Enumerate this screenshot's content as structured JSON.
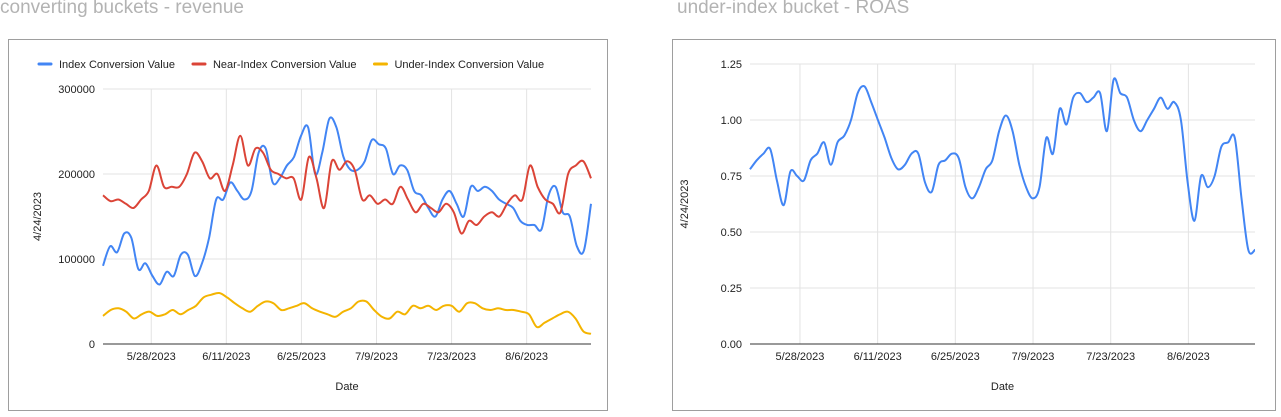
{
  "charts": {
    "left": {
      "title": "converting buckets - revenue"
    },
    "right": {
      "title": "under-index bucket - ROAS"
    }
  },
  "chart_data": [
    {
      "type": "line",
      "title": "converting buckets - revenue",
      "xlabel": "Date",
      "ylabel": "4/24/2023",
      "x_ticks": [
        "5/28/2023",
        "6/11/2023",
        "6/25/2023",
        "7/9/2023",
        "7/23/2023",
        "8/6/2023"
      ],
      "x_range": [
        "5/19/2023",
        "8/18/2023"
      ],
      "ylim": [
        0,
        300000
      ],
      "y_ticks": [
        0,
        100000,
        200000,
        300000
      ],
      "y_tick_labels": [
        "0",
        "100000",
        "200000",
        "300000"
      ],
      "grid": true,
      "legend": "top",
      "series": [
        {
          "name": "Index Conversion Value",
          "color": "#4285f4",
          "values": [
            92000,
            115000,
            108000,
            130000,
            125000,
            88000,
            95000,
            80000,
            70000,
            85000,
            80000,
            105000,
            105000,
            80000,
            95000,
            125000,
            170000,
            170000,
            190000,
            180000,
            170000,
            180000,
            225000,
            230000,
            190000,
            195000,
            210000,
            220000,
            245000,
            255000,
            200000,
            225000,
            265000,
            255000,
            220000,
            205000,
            205000,
            215000,
            240000,
            235000,
            230000,
            200000,
            210000,
            205000,
            180000,
            175000,
            160000,
            150000,
            170000,
            180000,
            165000,
            150000,
            185000,
            180000,
            185000,
            180000,
            170000,
            165000,
            160000,
            145000,
            140000,
            140000,
            135000,
            175000,
            185000,
            155000,
            150000,
            115000,
            110000,
            165000
          ]
        },
        {
          "name": "Near-Index Conversion Value",
          "color": "#db4437",
          "values": [
            175000,
            168000,
            170000,
            165000,
            160000,
            170000,
            180000,
            210000,
            185000,
            185000,
            185000,
            200000,
            225000,
            215000,
            195000,
            200000,
            180000,
            210000,
            245000,
            210000,
            230000,
            225000,
            205000,
            200000,
            195000,
            195000,
            170000,
            220000,
            195000,
            160000,
            215000,
            205000,
            215000,
            205000,
            170000,
            175000,
            165000,
            170000,
            165000,
            185000,
            170000,
            155000,
            165000,
            160000,
            155000,
            165000,
            155000,
            130000,
            145000,
            140000,
            150000,
            155000,
            150000,
            165000,
            175000,
            170000,
            210000,
            185000,
            170000,
            165000,
            155000,
            200000,
            210000,
            215000,
            195000
          ]
        },
        {
          "name": "Under-Index Conversion Value",
          "color": "#f4b400",
          "values": [
            33000,
            40000,
            42000,
            38000,
            30000,
            35000,
            38000,
            33000,
            35000,
            40000,
            35000,
            40000,
            45000,
            55000,
            58000,
            60000,
            55000,
            48000,
            42000,
            38000,
            45000,
            50000,
            48000,
            40000,
            42000,
            45000,
            48000,
            42000,
            38000,
            35000,
            32000,
            38000,
            42000,
            50000,
            50000,
            40000,
            32000,
            30000,
            38000,
            35000,
            45000,
            42000,
            45000,
            40000,
            45000,
            45000,
            38000,
            48000,
            48000,
            42000,
            40000,
            42000,
            40000,
            40000,
            38000,
            35000,
            20000,
            25000,
            30000,
            35000,
            38000,
            30000,
            15000,
            12000
          ]
        }
      ]
    },
    {
      "type": "line",
      "title": "under-index bucket - ROAS",
      "xlabel": "Date",
      "ylabel": "4/24/2023",
      "x_ticks": [
        "5/28/2023",
        "6/11/2023",
        "6/25/2023",
        "7/9/2023",
        "7/23/2023",
        "8/6/2023"
      ],
      "x_range": [
        "5/19/2023",
        "8/18/2023"
      ],
      "ylim": [
        0,
        1.25
      ],
      "y_ticks": [
        0,
        0.25,
        0.5,
        0.75,
        1,
        1.25
      ],
      "y_tick_labels": [
        "0.00",
        "0.25",
        "0.50",
        "0.75",
        "1.00",
        "1.25"
      ],
      "grid": true,
      "legend": "none",
      "series": [
        {
          "name": "",
          "color": "#4285f4",
          "values": [
            0.78,
            0.82,
            0.85,
            0.87,
            0.73,
            0.62,
            0.77,
            0.75,
            0.73,
            0.82,
            0.85,
            0.9,
            0.8,
            0.9,
            0.93,
            1.0,
            1.12,
            1.15,
            1.08,
            1.0,
            0.92,
            0.83,
            0.78,
            0.8,
            0.85,
            0.85,
            0.72,
            0.68,
            0.8,
            0.82,
            0.85,
            0.83,
            0.7,
            0.65,
            0.7,
            0.78,
            0.82,
            0.95,
            1.02,
            0.95,
            0.8,
            0.7,
            0.65,
            0.7,
            0.92,
            0.85,
            1.05,
            0.98,
            1.1,
            1.12,
            1.08,
            1.1,
            1.12,
            0.95,
            1.18,
            1.12,
            1.1,
            1.0,
            0.95,
            1.0,
            1.05,
            1.1,
            1.05,
            1.08,
            1.0,
            0.72,
            0.55,
            0.75,
            0.7,
            0.75,
            0.88,
            0.9,
            0.92,
            0.65,
            0.42,
            0.42
          ]
        }
      ]
    }
  ]
}
